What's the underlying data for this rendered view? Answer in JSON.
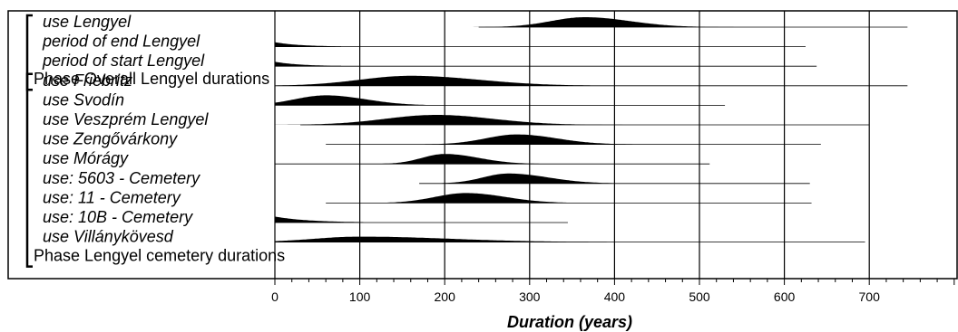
{
  "chart_data": {
    "type": "area",
    "title": "",
    "xlabel": "Duration (years)",
    "ylabel": "",
    "xlim": [
      0,
      800
    ],
    "x_ticks": [
      0,
      100,
      200,
      300,
      400,
      500,
      600,
      700
    ],
    "x_tick_labels": [
      "0",
      "100",
      "200",
      "300",
      "400",
      "500",
      "600",
      "700"
    ],
    "grid": "vertical lines at major ticks",
    "colors": {
      "fill": "#000000",
      "line": "#000000",
      "background": "#ffffff"
    },
    "groups": [
      {
        "label": "Phase Overall Lengyel durations",
        "rows": [
          0,
          1,
          2
        ]
      },
      {
        "label": "Phase Lengyel cemetery durations",
        "rows": [
          3,
          4,
          5,
          6,
          7,
          8,
          9,
          10,
          11
        ]
      }
    ],
    "rows": [
      {
        "label": "use Lengyel",
        "range": [
          240,
          745
        ],
        "peak": 365,
        "spread_left": 60,
        "spread_right": 80,
        "height": 1.0,
        "kind": "bell"
      },
      {
        "label": "period of end Lengyel",
        "range": [
          0,
          625
        ],
        "peak": 0,
        "spread_left": 0,
        "spread_right": 30,
        "height": 0.45,
        "kind": "decay"
      },
      {
        "label": "period of start Lengyel",
        "range": [
          0,
          638
        ],
        "peak": 0,
        "spread_left": 0,
        "spread_right": 30,
        "height": 0.45,
        "kind": "decay"
      },
      {
        "label": "use Friebritz",
        "range": [
          0,
          745
        ],
        "peak": 160,
        "spread_left": 90,
        "spread_right": 120,
        "height": 1.0,
        "kind": "bell"
      },
      {
        "label": "use Svodín",
        "range": [
          0,
          530
        ],
        "peak": 60,
        "spread_left": 55,
        "spread_right": 70,
        "height": 1.0,
        "kind": "bell"
      },
      {
        "label": "use Veszprém Lengyel",
        "range": [
          30,
          700
        ],
        "peak": 190,
        "spread_left": 90,
        "spread_right": 100,
        "height": 1.0,
        "kind": "bell"
      },
      {
        "label": "use Zengővárkony",
        "range": [
          60,
          643
        ],
        "peak": 285,
        "spread_left": 55,
        "spread_right": 70,
        "height": 1.0,
        "kind": "bell"
      },
      {
        "label": "use Mórágy",
        "range": [
          0,
          512
        ],
        "peak": 200,
        "spread_left": 40,
        "spread_right": 60,
        "height": 1.0,
        "kind": "bell"
      },
      {
        "label": "use: 5603 - Cemetery",
        "range": [
          170,
          630
        ],
        "peak": 275,
        "spread_left": 45,
        "spread_right": 70,
        "height": 1.0,
        "kind": "bell"
      },
      {
        "label": "use: 11 - Cemetery",
        "range": [
          60,
          632
        ],
        "peak": 225,
        "spread_left": 55,
        "spread_right": 70,
        "height": 1.0,
        "kind": "bell"
      },
      {
        "label": "use: 10B - Cemetery",
        "range": [
          0,
          345
        ],
        "peak": 0,
        "spread_left": 0,
        "spread_right": 40,
        "height": 0.6,
        "kind": "decay"
      },
      {
        "label": "use Villánykövesd",
        "range": [
          0,
          695
        ],
        "peak": 100,
        "spread_left": 80,
        "spread_right": 160,
        "height": 0.55,
        "kind": "bell"
      }
    ]
  }
}
